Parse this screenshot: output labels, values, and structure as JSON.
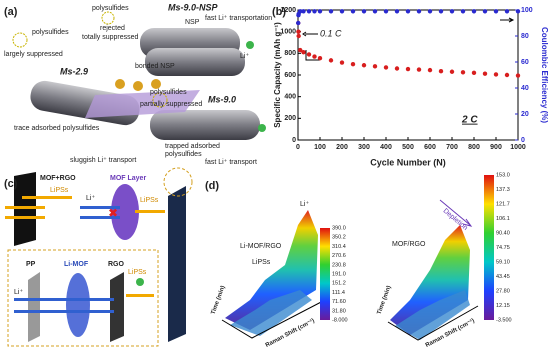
{
  "panel_a": {
    "label": "(a)",
    "texts": [
      "Ms-9.0-NSP",
      "polysulfides",
      "rejected",
      "totally suppressed",
      "NSP",
      "bonded NSP",
      "fast Li⁺ transportation",
      "Li⁺",
      "polysulfides",
      "largely suppressed",
      "Ms-2.9",
      "trace adsorbed polysulfides",
      "sluggish Li⁺ transport",
      "polysulfides",
      "partially suppressed",
      "Ms-9.0",
      "trapped adsorbed",
      "polysulfides",
      "fast Li⁺ transport"
    ]
  },
  "chart_data": {
    "type": "scatter",
    "label": "(b)",
    "xlabel": "Cycle Number (N)",
    "ylabel": "Specific Capacity (mAh g⁻¹)",
    "y2label": "Coulombic Efficiency (%)",
    "annotations": [
      "0.1 C",
      "2 C"
    ],
    "x": [
      1,
      2,
      3,
      10,
      25,
      50,
      75,
      100,
      150,
      200,
      250,
      300,
      350,
      400,
      450,
      500,
      550,
      600,
      650,
      700,
      750,
      800,
      850,
      900,
      950,
      1000
    ],
    "series": [
      {
        "color": "#d81e1e",
        "values": [
          1080,
          1000,
          960,
          830,
          810,
          790,
          770,
          755,
          735,
          715,
          700,
          690,
          680,
          670,
          660,
          655,
          650,
          645,
          635,
          630,
          625,
          620,
          612,
          605,
          600,
          595
        ]
      },
      {
        "color": "#2a2ad0",
        "axis": "y2",
        "values": [
          90,
          96,
          97,
          99,
          99,
          99,
          99,
          99,
          99,
          99,
          99,
          99,
          99,
          99,
          99,
          99,
          99,
          99,
          99,
          99,
          99,
          99,
          99,
          99,
          99,
          99
        ]
      }
    ],
    "xlim": [
      0,
      1000
    ],
    "xticks": [
      0,
      100,
      200,
      300,
      400,
      500,
      600,
      700,
      800,
      900,
      1000
    ],
    "ylim": [
      0,
      1200
    ],
    "yticks": [
      0,
      200,
      400,
      600,
      800,
      1000,
      1200
    ],
    "y2lim": [
      0,
      100
    ],
    "y2ticks": [
      0,
      20,
      40,
      60,
      80,
      100
    ]
  },
  "panel_c": {
    "label": "(c)",
    "texts": [
      "MOF+RGO",
      "LiPSs",
      "MOF Layer",
      "Li⁺",
      "LiPSs",
      "PP",
      "Li-MOF",
      "RGO",
      "Li⁺",
      "LiPSs"
    ]
  },
  "panel_d": {
    "label": "(d)",
    "texts": [
      "Li-MOF/RGO",
      "Li⁺",
      "LiPSs",
      "MOF/RGO",
      "Depletion",
      "Raman Shift (cm⁻¹)",
      "Raman Shift (cm⁻¹)",
      "Time (min)",
      "Time (min)"
    ],
    "colorbar_left": [
      "390.0",
      "350.2",
      "310.4",
      "270.6",
      "230.8",
      "191.0",
      "151.2",
      "111.4",
      "71.60",
      "31.80",
      "-8.000"
    ],
    "colorbar_right": [
      "153.0",
      "137.3",
      "121.7",
      "106.1",
      "90.40",
      "74.75",
      "59.10",
      "43.45",
      "27.80",
      "12.15",
      "-3.500"
    ]
  }
}
